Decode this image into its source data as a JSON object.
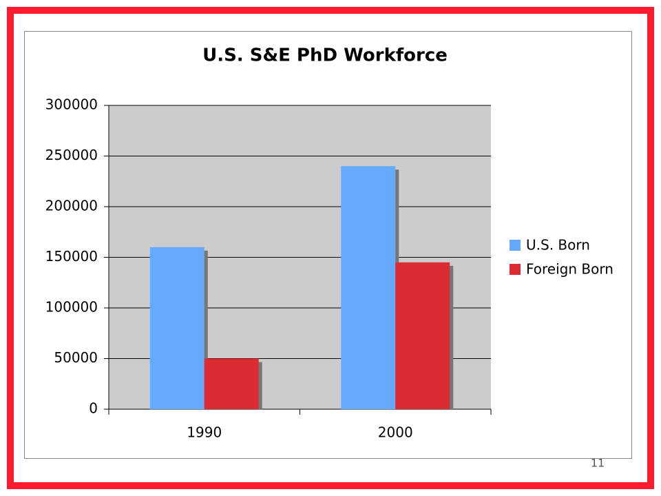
{
  "chart_data": {
    "type": "bar",
    "title": "U.S. S&E PhD Workforce",
    "categories": [
      "1990",
      "2000"
    ],
    "series": [
      {
        "name": "U.S. Born",
        "color": "#66aaff",
        "values": [
          160000,
          240000
        ]
      },
      {
        "name": "Foreign Born",
        "color": "#dd2b33",
        "values": [
          50000,
          145000
        ]
      }
    ],
    "ylim": [
      0,
      300000
    ],
    "yticks": [
      0,
      50000,
      100000,
      150000,
      200000,
      250000,
      300000
    ],
    "grid": true,
    "legend": "right"
  },
  "page_number": "11"
}
